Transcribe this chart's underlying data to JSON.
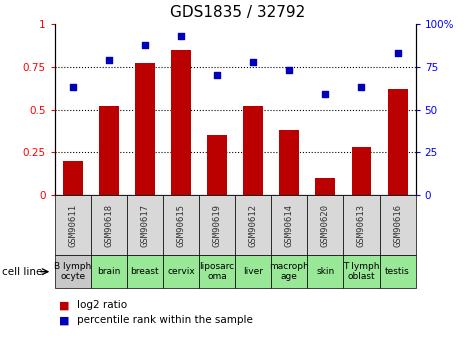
{
  "title": "GDS1835 / 32792",
  "gsm_labels": [
    "GSM90611",
    "GSM90618",
    "GSM90617",
    "GSM90615",
    "GSM90619",
    "GSM90612",
    "GSM90614",
    "GSM90620",
    "GSM90613",
    "GSM90616"
  ],
  "cell_lines": [
    "B lymph\nocyte",
    "brain",
    "breast",
    "cervix",
    "liposarc\noma",
    "liver",
    "macroph\nage",
    "skin",
    "T lymph\noblast",
    "testis"
  ],
  "cell_line_colors": [
    "#c8c8c8",
    "#98e898",
    "#98e898",
    "#98e898",
    "#98e898",
    "#98e898",
    "#98e898",
    "#98e898",
    "#98e898",
    "#98e898"
  ],
  "gsm_bg_color": "#d8d8d8",
  "log2_ratio": [
    0.2,
    0.52,
    0.77,
    0.85,
    0.35,
    0.52,
    0.38,
    0.1,
    0.28,
    0.62
  ],
  "percentile_rank": [
    63,
    79,
    88,
    93,
    70,
    78,
    73,
    59,
    63,
    83
  ],
  "bar_color": "#bb0000",
  "dot_color": "#0000bb",
  "left_ylim": [
    0,
    1
  ],
  "right_ylim": [
    0,
    100
  ],
  "left_yticks": [
    0,
    0.25,
    0.5,
    0.75,
    1
  ],
  "right_yticks": [
    0,
    25,
    50,
    75,
    100
  ],
  "left_yticklabels": [
    "0",
    "0.25",
    "0.5",
    "0.75",
    "1"
  ],
  "right_yticklabels": [
    "0",
    "25",
    "50",
    "75",
    "100%"
  ],
  "cell_line_label": "cell line",
  "legend_bar_label": "log2 ratio",
  "legend_dot_label": "percentile rank within the sample",
  "gsm_label_color": "#333333",
  "bar_width": 0.55,
  "title_fontsize": 11,
  "tick_fontsize": 7.5,
  "gsm_fontsize": 6.5,
  "cell_fontsize": 6.5
}
